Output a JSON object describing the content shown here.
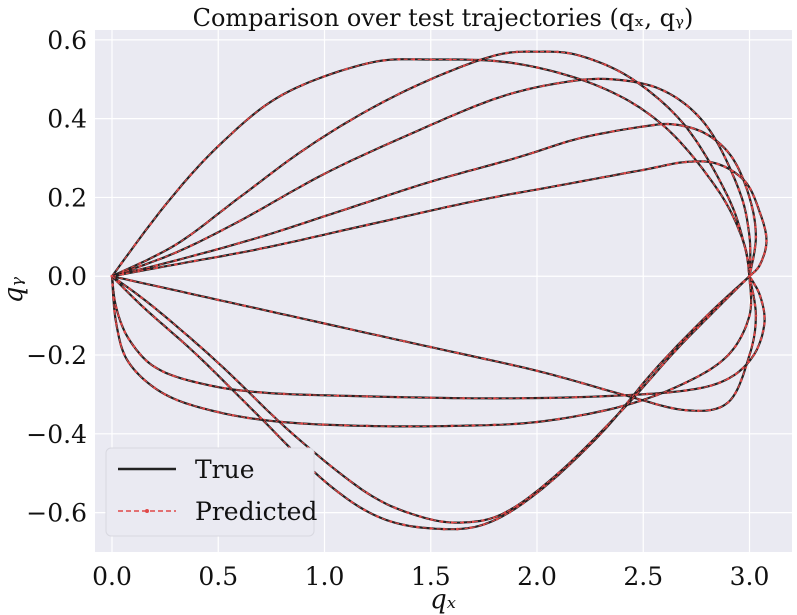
{
  "chart_data": {
    "type": "line",
    "title": "Comparison over test trajectories (qₓ, qᵧ)",
    "xlabel": "qₓ",
    "ylabel": "qᵧ",
    "xlim": [
      -0.08,
      3.2
    ],
    "ylim": [
      -0.7,
      0.625
    ],
    "x_ticks": [
      0.0,
      0.5,
      1.0,
      1.5,
      2.0,
      2.5,
      3.0
    ],
    "x_tick_labels": [
      "0.0",
      "0.5",
      "1.0",
      "1.5",
      "2.0",
      "2.5",
      "3.0"
    ],
    "y_ticks": [
      -0.6,
      -0.4,
      -0.2,
      0.0,
      0.2,
      0.4,
      0.6
    ],
    "y_tick_labels": [
      "−0.6",
      "−0.4",
      "−0.2",
      "0.0",
      "0.2",
      "0.4",
      "0.6"
    ],
    "grid": true,
    "legend": {
      "placement": "lower-left",
      "entries": [
        {
          "label": "True",
          "color": "#222222",
          "style": "solid"
        },
        {
          "label": "Predicted",
          "color": "#e04848",
          "style": "dashed-markers"
        }
      ]
    },
    "colors": {
      "true": "#222222",
      "predicted": "#e04848",
      "background": "#eaeaf2",
      "grid": "#ffffff"
    },
    "trajectories": [
      {
        "points": [
          [
            0,
            0
          ],
          [
            0.25,
            0.18
          ],
          [
            0.5,
            0.33
          ],
          [
            0.8,
            0.46
          ],
          [
            1.2,
            0.54
          ],
          [
            1.5,
            0.55
          ],
          [
            1.9,
            0.54
          ],
          [
            2.3,
            0.48
          ],
          [
            2.6,
            0.38
          ],
          [
            2.85,
            0.22
          ],
          [
            2.97,
            0.09
          ],
          [
            3.0,
            0.0
          ]
        ]
      },
      {
        "points": [
          [
            0,
            0
          ],
          [
            0.3,
            0.08
          ],
          [
            0.6,
            0.2
          ],
          [
            0.9,
            0.32
          ],
          [
            1.2,
            0.42
          ],
          [
            1.5,
            0.5
          ],
          [
            1.8,
            0.56
          ],
          [
            2.0,
            0.57
          ],
          [
            2.2,
            0.56
          ],
          [
            2.45,
            0.5
          ],
          [
            2.7,
            0.38
          ],
          [
            2.9,
            0.2
          ],
          [
            2.98,
            0.07
          ],
          [
            3.0,
            0.0
          ]
        ]
      },
      {
        "points": [
          [
            0,
            0
          ],
          [
            0.3,
            0.06
          ],
          [
            0.6,
            0.14
          ],
          [
            1.0,
            0.26
          ],
          [
            1.4,
            0.36
          ],
          [
            1.8,
            0.45
          ],
          [
            2.1,
            0.49
          ],
          [
            2.35,
            0.5
          ],
          [
            2.6,
            0.47
          ],
          [
            2.8,
            0.38
          ],
          [
            2.95,
            0.22
          ],
          [
            3.0,
            0.1
          ],
          [
            3.0,
            0.0
          ]
        ]
      },
      {
        "points": [
          [
            0,
            0
          ],
          [
            0.3,
            0.04
          ],
          [
            0.7,
            0.1
          ],
          [
            1.1,
            0.17
          ],
          [
            1.5,
            0.24
          ],
          [
            1.9,
            0.3
          ],
          [
            2.2,
            0.35
          ],
          [
            2.5,
            0.38
          ],
          [
            2.65,
            0.385
          ],
          [
            2.8,
            0.36
          ],
          [
            2.92,
            0.3
          ],
          [
            3.0,
            0.2
          ],
          [
            3.03,
            0.1
          ],
          [
            3.0,
            0.0
          ]
        ]
      },
      {
        "points": [
          [
            0,
            0
          ],
          [
            0.3,
            0.03
          ],
          [
            0.7,
            0.07
          ],
          [
            1.2,
            0.13
          ],
          [
            1.7,
            0.19
          ],
          [
            2.1,
            0.23
          ],
          [
            2.5,
            0.27
          ],
          [
            2.7,
            0.29
          ],
          [
            2.85,
            0.285
          ],
          [
            2.98,
            0.24
          ],
          [
            3.05,
            0.16
          ],
          [
            3.08,
            0.09
          ],
          [
            3.05,
            0.03
          ],
          [
            3.0,
            0.0
          ]
        ]
      },
      {
        "points": [
          [
            0,
            0
          ],
          [
            0.5,
            -0.06
          ],
          [
            1.0,
            -0.12
          ],
          [
            1.5,
            -0.18
          ],
          [
            2.0,
            -0.24
          ],
          [
            2.4,
            -0.3
          ],
          [
            2.7,
            -0.34
          ],
          [
            2.9,
            -0.32
          ],
          [
            3.0,
            -0.2
          ],
          [
            3.03,
            -0.1
          ],
          [
            3.0,
            0.0
          ]
        ]
      },
      {
        "points": [
          [
            0,
            0
          ],
          [
            0.02,
            -0.08
          ],
          [
            0.08,
            -0.16
          ],
          [
            0.2,
            -0.23
          ],
          [
            0.4,
            -0.27
          ],
          [
            0.7,
            -0.295
          ],
          [
            1.2,
            -0.305
          ],
          [
            1.8,
            -0.31
          ],
          [
            2.3,
            -0.305
          ],
          [
            2.7,
            -0.29
          ],
          [
            2.9,
            -0.26
          ],
          [
            3.02,
            -0.2
          ],
          [
            3.07,
            -0.12
          ],
          [
            3.05,
            -0.05
          ],
          [
            3.0,
            0.0
          ]
        ]
      },
      {
        "points": [
          [
            0,
            0
          ],
          [
            0.02,
            -0.12
          ],
          [
            0.08,
            -0.22
          ],
          [
            0.25,
            -0.3
          ],
          [
            0.5,
            -0.345
          ],
          [
            0.8,
            -0.37
          ],
          [
            1.2,
            -0.38
          ],
          [
            1.6,
            -0.38
          ],
          [
            2.0,
            -0.37
          ],
          [
            2.4,
            -0.33
          ],
          [
            2.7,
            -0.27
          ],
          [
            2.9,
            -0.2
          ],
          [
            3.0,
            -0.1
          ],
          [
            3.0,
            0.0
          ]
        ]
      },
      {
        "points": [
          [
            0,
            0
          ],
          [
            0.15,
            -0.08
          ],
          [
            0.4,
            -0.2
          ],
          [
            0.7,
            -0.36
          ],
          [
            1.0,
            -0.52
          ],
          [
            1.25,
            -0.61
          ],
          [
            1.5,
            -0.64
          ],
          [
            1.75,
            -0.63
          ],
          [
            2.0,
            -0.55
          ],
          [
            2.3,
            -0.4
          ],
          [
            2.55,
            -0.24
          ],
          [
            2.8,
            -0.1
          ],
          [
            3.0,
            0.0
          ]
        ]
      },
      {
        "points": [
          [
            0,
            0
          ],
          [
            0.2,
            -0.08
          ],
          [
            0.5,
            -0.22
          ],
          [
            0.85,
            -0.4
          ],
          [
            1.2,
            -0.55
          ],
          [
            1.45,
            -0.61
          ],
          [
            1.65,
            -0.625
          ],
          [
            1.85,
            -0.6
          ],
          [
            2.1,
            -0.5
          ],
          [
            2.4,
            -0.34
          ],
          [
            2.65,
            -0.19
          ],
          [
            2.85,
            -0.08
          ],
          [
            3.0,
            0.0
          ]
        ]
      }
    ]
  }
}
